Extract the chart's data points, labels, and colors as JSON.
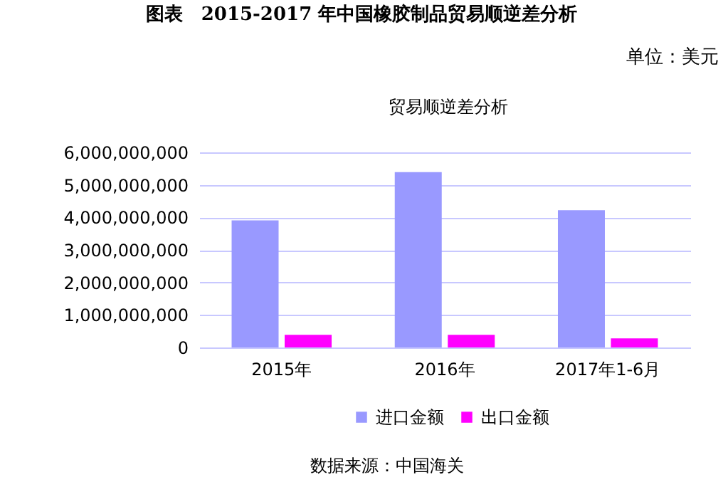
{
  "chart_data": {
    "type": "bar",
    "title": "图表　2015-2017 年中国橡胶制品贸易顺逆差分析",
    "subtitle": "贸易顺逆差分析",
    "annotations": [
      "单位：美元",
      "数据来源：中国海关"
    ],
    "categories": [
      "2015年",
      "2016年",
      "2017年1-6月"
    ],
    "series": [
      {
        "name": "进口金额",
        "color": "#9999ff",
        "values": [
          3910000000,
          5390000000,
          4220000000
        ]
      },
      {
        "name": "出口金额",
        "color": "#ff00ff",
        "values": [
          390000000,
          390000000,
          280000000
        ]
      }
    ],
    "ylim": [
      0,
      6000000000
    ],
    "yticks": [
      0,
      {
        "value": 1000000000,
        "label": "1,000,000,000"
      },
      {
        "value": 2000000000,
        "label": "2,000,000,000"
      },
      {
        "value": 3000000000,
        "label": "3,000,000,000"
      },
      {
        "value": 4000000000,
        "label": "4,000,000,000"
      },
      {
        "value": 5000000000,
        "label": "5,000,000,000"
      },
      {
        "value": 6000000000,
        "label": "6,000,000,000"
      }
    ],
    "grid": "y",
    "legend": "bottom"
  }
}
